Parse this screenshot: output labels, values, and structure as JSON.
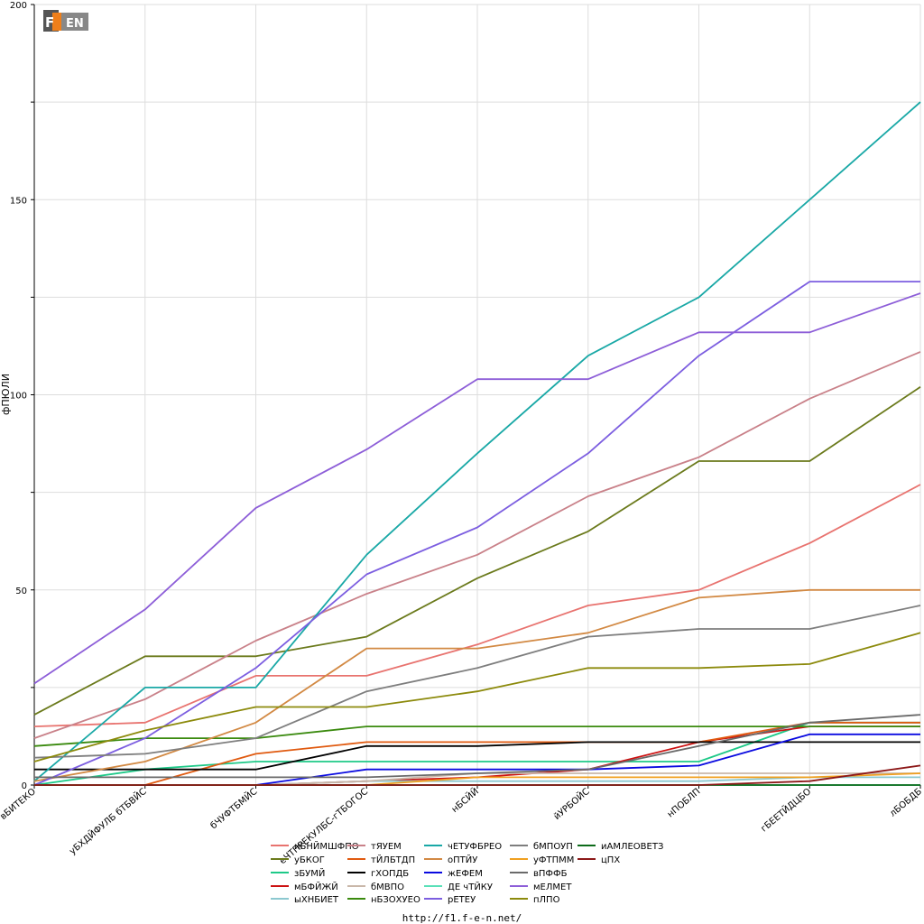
{
  "logo": {
    "text": "F1-EN"
  },
  "footer": {
    "url": "http://f1.f-e-n.net/"
  },
  "chart_data": {
    "type": "line",
    "ylabel": "фПЮЛИ",
    "ylim": [
      0,
      200
    ],
    "yticks": [
      0,
      50,
      100,
      150,
      200
    ],
    "grid": true,
    "legend_position": "bottom",
    "categories": [
      "вБИТЕКО",
      "уБХДЙФУЛБ бТБВЙС",
      "бЧУФТБМЙС",
      "еЧТПРЕКУЛБС-гТБОГОС",
      "нБСЙЙ",
      "йУРБОЙС",
      "нПОБЛП",
      "гБЕЕТЙДЦБО",
      "лБОБДБ"
    ],
    "series": [
      {
        "name": "иБНЙМШФПО",
        "color": "#e8736f",
        "values": [
          15,
          16,
          28,
          28,
          36,
          46,
          50,
          62,
          77
        ]
      },
      {
        "name": "уБКОГ",
        "color": "#6b7a1c",
        "values": [
          18,
          33,
          33,
          38,
          53,
          65,
          83,
          83,
          102
        ]
      },
      {
        "name": "зБУМЙ",
        "color": "#1ec988",
        "values": [
          0,
          4,
          6,
          6,
          6,
          6,
          6,
          16,
          16
        ]
      },
      {
        "name": "мБФЙЖЙ",
        "color": "#cc1111",
        "values": [
          0,
          0,
          0,
          1,
          2,
          4,
          11,
          15,
          15
        ]
      },
      {
        "name": "ыХНБИЕТ",
        "color": "#8cc8d0",
        "values": [
          0,
          0,
          0,
          1,
          1,
          1,
          1,
          2,
          2
        ]
      },
      {
        "name": "тЯУЕМ",
        "color": "#c98189",
        "values": [
          12,
          22,
          37,
          49,
          59,
          74,
          84,
          99,
          111
        ]
      },
      {
        "name": "тЙЛБТДП",
        "color": "#e05a10",
        "values": [
          0,
          0,
          8,
          11,
          11,
          11,
          11,
          16,
          16
        ]
      },
      {
        "name": "гХОПДБ",
        "color": "#000000",
        "values": [
          4,
          4,
          4,
          10,
          10,
          11,
          11,
          11,
          11
        ]
      },
      {
        "name": "бМВПО",
        "color": "#c9b7a9",
        "values": [
          0,
          0,
          0,
          1,
          3,
          3,
          3,
          3,
          3
        ]
      },
      {
        "name": "нБЗОХУЕО",
        "color": "#3a8a0e",
        "values": [
          10,
          12,
          12,
          15,
          15,
          15,
          15,
          15,
          15
        ]
      },
      {
        "name": "чЕТУФБРЕО",
        "color": "#19a8a6",
        "values": [
          1,
          25,
          25,
          59,
          85,
          110,
          125,
          150,
          175
        ]
      },
      {
        "name": "оПТЙУ",
        "color": "#d28943",
        "values": [
          1,
          6,
          16,
          35,
          35,
          39,
          48,
          50,
          50
        ]
      },
      {
        "name": "жЕФЕМ",
        "color": "#0a0ae0",
        "values": [
          0,
          0,
          0,
          4,
          4,
          4,
          5,
          13,
          13
        ]
      },
      {
        "name": "ДЕ чТЙКУ",
        "color": "#59e0b8",
        "values": [
          0,
          0,
          0,
          0,
          0,
          0,
          0,
          0,
          0
        ]
      },
      {
        "name": "рЕТЕУ",
        "color": "#7c5ee0",
        "values": [
          0,
          12,
          30,
          54,
          66,
          85,
          110,
          129,
          129
        ]
      },
      {
        "name": "бМПОУП",
        "color": "#7e7e7e",
        "values": [
          7,
          8,
          12,
          24,
          30,
          38,
          40,
          40,
          46
        ]
      },
      {
        "name": "уФТПММ",
        "color": "#f0a020",
        "values": [
          0,
          0,
          0,
          0,
          2,
          2,
          2,
          2,
          3
        ]
      },
      {
        "name": "вПФФБ",
        "color": "#6a6a6a",
        "values": [
          2,
          2,
          2,
          2,
          3,
          4,
          10,
          16,
          18
        ]
      },
      {
        "name": "мЕЛМЕТ",
        "color": "#8d5ed8",
        "values": [
          26,
          45,
          71,
          86,
          104,
          104,
          116,
          116,
          126
        ]
      },
      {
        "name": "пЛПО",
        "color": "#8c8a0c",
        "values": [
          6,
          14,
          20,
          20,
          24,
          30,
          30,
          31,
          39
        ]
      },
      {
        "name": "иАМЛЕОВЕТЗ",
        "color": "#0d6b1a",
        "values": [
          0,
          0,
          0,
          0,
          0,
          0,
          0,
          0,
          0
        ]
      },
      {
        "name": "цПХ",
        "color": "#8c1818",
        "values": [
          0,
          0,
          0,
          0,
          0,
          0,
          0,
          1,
          5
        ]
      }
    ]
  }
}
